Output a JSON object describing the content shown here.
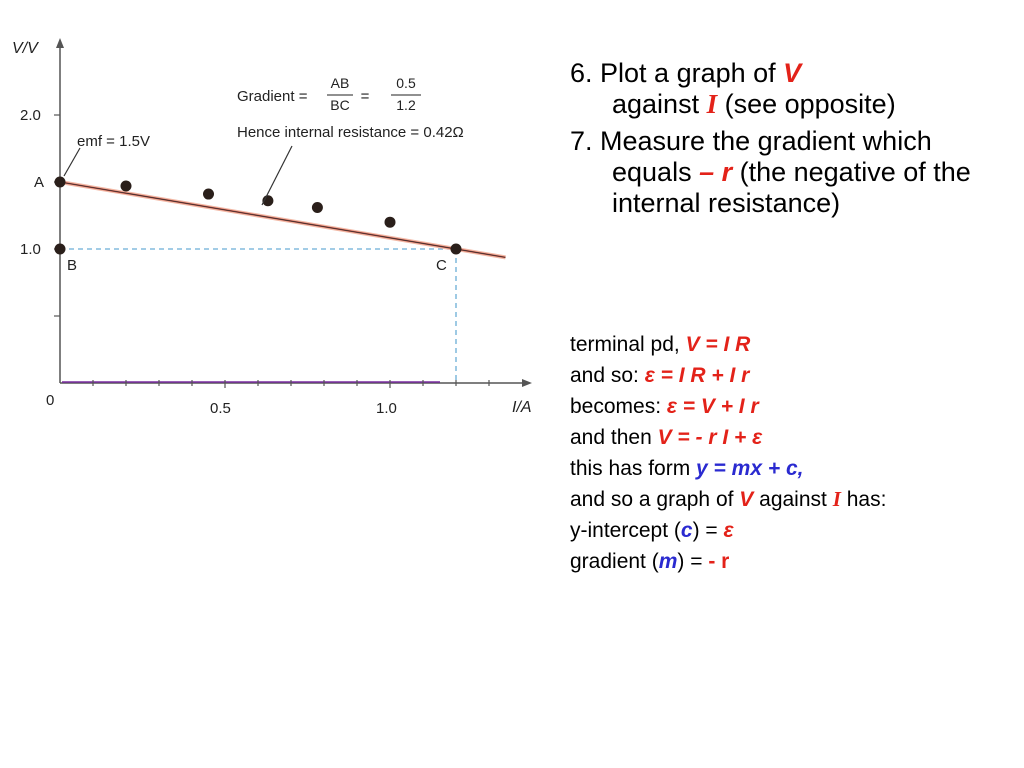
{
  "chart_data": {
    "type": "scatter",
    "x": [
      0.0,
      0.2,
      0.45,
      0.63,
      0.78,
      1.0,
      1.2
    ],
    "y": [
      1.5,
      1.47,
      1.41,
      1.36,
      1.31,
      1.2,
      1.0
    ],
    "fit_line": {
      "x0": 0.0,
      "y0": 1.5,
      "x1": 1.2,
      "y1": 1.0,
      "x_end": 1.35
    },
    "xlim": [
      0,
      1.4
    ],
    "ylim": [
      0,
      2.2
    ],
    "xlabel": "I/A",
    "ylabel": "V/V",
    "x_tick_labels": [
      "0",
      "0.5",
      "1.0"
    ],
    "y_tick_labels": [
      "2.0",
      "1.0"
    ],
    "point_labels": {
      "A": "A",
      "B": "B",
      "C": "C"
    },
    "annotations": {
      "emf": "emf = 1.5V",
      "gradient_word": "Gradient =",
      "frac1_num": "AB",
      "frac1_den": "BC",
      "equals": "=",
      "frac2_num": "0.5",
      "frac2_den": "1.2",
      "hence": "Hence internal resistance = 0.42Ω"
    },
    "colors": {
      "points": "#2a1f1a",
      "fit_line": "#c9473a",
      "dashed": "#6aaed6",
      "baseline": "#7a2ca0"
    }
  },
  "steps": {
    "s6_a": "6. Plot a graph of ",
    "s6_V": "V",
    "s6_b": "against ",
    "s6_I": "I",
    "s6_c": " (see opposite)",
    "s7_a": "7. Measure the gradient which equals ",
    "s7_r": "– r",
    "s7_b": " (the negative of the internal resistance)"
  },
  "derivation": {
    "l1_a": "terminal pd, ",
    "l1_eq": "V = I R",
    "l2_a": "and so: ",
    "l2_eq": "ε = I R + I r",
    "l3_a": "becomes: ",
    "l3_eq": "ε = V + I r",
    "l4_a": "and then ",
    "l4_eq": "V = - r I + ε",
    "l5_a": "this has form ",
    "l5_eq": "y = mx + c,",
    "l6_a": "and so a graph of ",
    "l6_V": "V",
    "l6_b": " against ",
    "l6_I": "I",
    "l6_c": "has:",
    "l7_a": "y-intercept (",
    "l7_c": "c",
    "l7_b": ") = ",
    "l7_e": "ε",
    "l8_a": "gradient (",
    "l8_m": "m",
    "l8_b": ") = ",
    "l8_r": "- r"
  }
}
